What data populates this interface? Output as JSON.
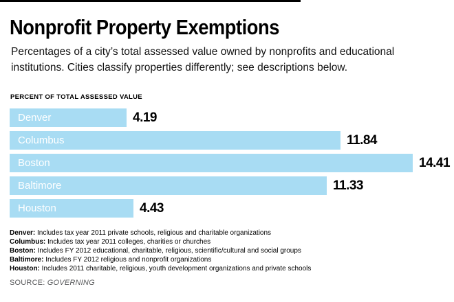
{
  "header": {
    "title": "Nonprofit Property Exemptions",
    "subtitle": "Percentages of a city’s total assessed value owned by nonprofits and educational institutions. Cities classify properties differently; see descriptions below."
  },
  "chart_data": {
    "type": "bar",
    "orientation": "horizontal",
    "axis_label": "PERCENT OF TOTAL ASSESSED VALUE",
    "categories": [
      "Denver",
      "Columbus",
      "Boston",
      "Baltimore",
      "Houston"
    ],
    "values": [
      4.19,
      11.84,
      14.41,
      11.33,
      4.43
    ],
    "xlim": [
      0,
      14.41
    ],
    "bar_color": "#a8dcf3",
    "label_color": "#ffffff",
    "value_color": "#000000",
    "legend": "none",
    "grid": "off"
  },
  "footnotes": [
    {
      "city": "Denver:",
      "text": "Includes tax year 2011 private schools, religious and charitable organizations"
    },
    {
      "city": "Columbus:",
      "text": "Includes tax year 2011 colleges, charities or churches"
    },
    {
      "city": "Boston:",
      "text": "Includes FY 2012 educational, charitable, religious, scientific/cultural and social groups"
    },
    {
      "city": "Baltimore:",
      "text": "Includes FY 2012 religious and nonprofit organizations"
    },
    {
      "city": "Houston:",
      "text": "Includes 2011 charitable, religious, youth development organizations and private schools"
    }
  ],
  "source": {
    "label": "SOURCE:",
    "name": "GOVERNING"
  }
}
